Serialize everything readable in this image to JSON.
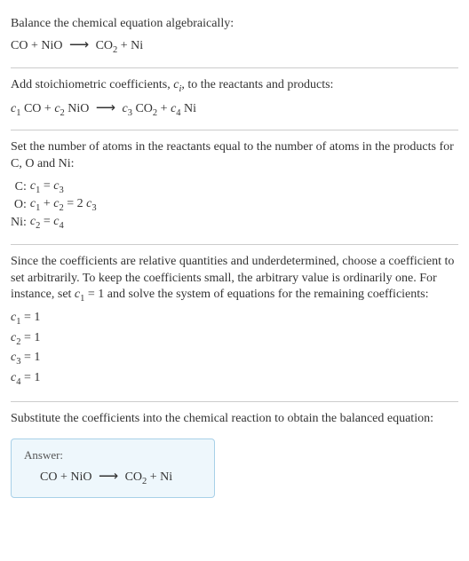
{
  "section1": {
    "title": "Balance the chemical equation algebraically:",
    "eq_left1": "CO",
    "eq_plus": " + ",
    "eq_left2": "NiO",
    "eq_right1": "CO",
    "eq_right1_sub": "2",
    "eq_right2": "Ni"
  },
  "section2": {
    "title_pre": "Add stoichiometric coefficients, ",
    "title_ci": "c",
    "title_ci_sub": "i",
    "title_post": ", to the reactants and products:",
    "c1": "c",
    "c1s": "1",
    "t1": " CO",
    "c2": "c",
    "c2s": "2",
    "t2": " NiO",
    "c3": "c",
    "c3s": "3",
    "t3": " CO",
    "t3sub": "2",
    "c4": "c",
    "c4s": "4",
    "t4": " Ni"
  },
  "section3": {
    "title": "Set the number of atoms in the reactants equal to the number of atoms in the products for C, O and Ni:",
    "rows": {
      "r1e": "C:",
      "r1_c1": "c",
      "r1_c1s": "1",
      "r1_eq": " = ",
      "r1_c3": "c",
      "r1_c3s": "3",
      "r2e": "O:",
      "r2_c1": "c",
      "r2_c1s": "1",
      "r2_pl": " + ",
      "r2_c2": "c",
      "r2_c2s": "2",
      "r2_eq": " = 2 ",
      "r2_c3": "c",
      "r2_c3s": "3",
      "r3e": "Ni:",
      "r3_c2": "c",
      "r3_c2s": "2",
      "r3_eq": " = ",
      "r3_c4": "c",
      "r3_c4s": "4"
    }
  },
  "section4": {
    "title_pre": "Since the coefficients are relative quantities and underdetermined, choose a coefficient to set arbitrarily. To keep the coefficients small, the arbitrary value is ordinarily one. For instance, set ",
    "title_c1": "c",
    "title_c1s": "1",
    "title_post": " = 1 and solve the system of equations for the remaining coefficients:",
    "lines": {
      "l1c": "c",
      "l1s": "1",
      "l1v": " = 1",
      "l2c": "c",
      "l2s": "2",
      "l2v": " = 1",
      "l3c": "c",
      "l3s": "3",
      "l3v": " = 1",
      "l4c": "c",
      "l4s": "4",
      "l4v": " = 1"
    }
  },
  "section5": {
    "title": "Substitute the coefficients into the chemical reaction to obtain the balanced equation:",
    "answer_label": "Answer:",
    "eq_left1": "CO",
    "eq_plus": " + ",
    "eq_left2": "NiO",
    "eq_right1": "CO",
    "eq_right1_sub": "2",
    "eq_right2": "Ni"
  },
  "arrow": "⟶"
}
